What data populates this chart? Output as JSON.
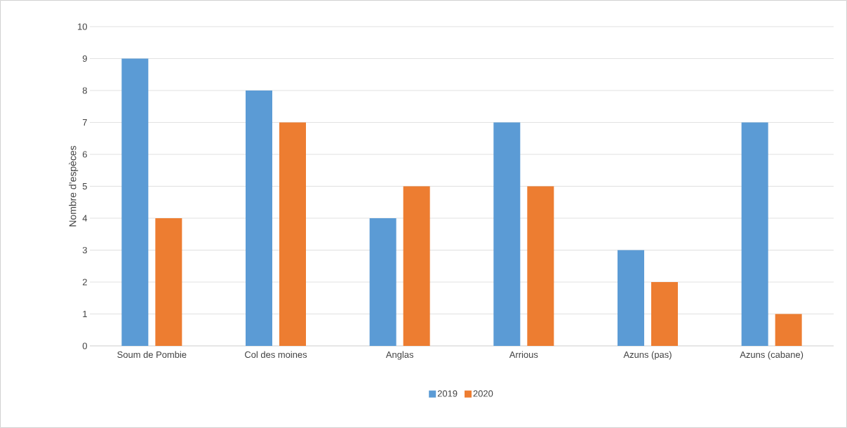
{
  "chart_data": {
    "type": "bar",
    "ylabel": "Nombre d’espèces",
    "categories": [
      "Soum de Pombie",
      "Col des moines",
      "Anglas",
      "Arrious",
      "Azuns (pas)",
      "Azuns (cabane)"
    ],
    "series": [
      {
        "name": "2019",
        "color": "#5b9bd5",
        "values": [
          9,
          8,
          4,
          7,
          3,
          7
        ]
      },
      {
        "name": "2020",
        "color": "#ed7d31",
        "values": [
          4,
          7,
          5,
          5,
          2,
          1
        ]
      }
    ],
    "ylim": [
      0,
      10
    ],
    "yticks": [
      0,
      1,
      2,
      3,
      4,
      5,
      6,
      7,
      8,
      9,
      10
    ],
    "grid": "y",
    "legend": "bottom"
  }
}
